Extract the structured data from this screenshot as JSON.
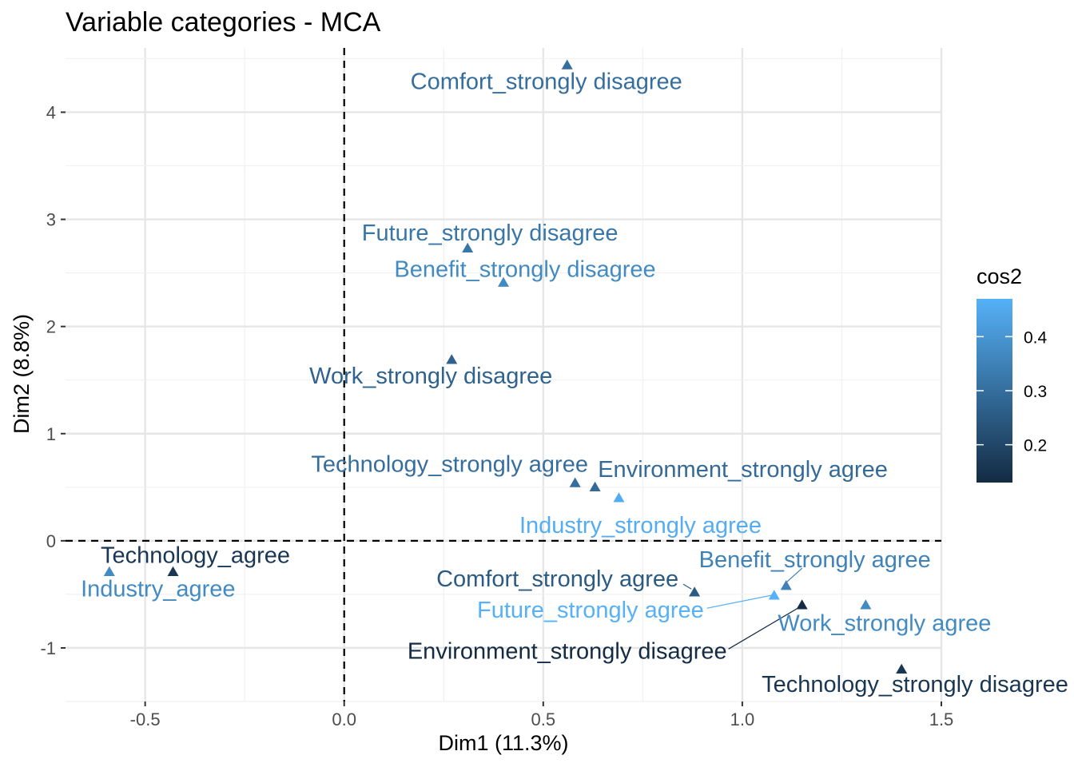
{
  "chart_data": {
    "type": "scatter",
    "title": "Variable categories - MCA",
    "xlabel": "Dim1 (11.3%)",
    "ylabel": "Dim2 (8.8%)",
    "xlim": [
      -0.7,
      1.5
    ],
    "ylim": [
      -1.5,
      4.6
    ],
    "xticks": [
      -0.5,
      0.0,
      0.5,
      1.0,
      1.5
    ],
    "xtick_labels": [
      "-0.5",
      "0.0",
      "0.5",
      "1.0",
      "1.5"
    ],
    "yticks": [
      -1,
      0,
      1,
      2,
      3,
      4
    ],
    "ytick_labels": [
      "-1",
      "0",
      "1",
      "2",
      "3",
      "4"
    ],
    "grid": true,
    "reference_lines": {
      "x": 0,
      "y": 0,
      "style": "dashed"
    },
    "legend": {
      "title": "cos2",
      "placement": "right",
      "range": [
        0.13,
        0.47
      ],
      "ticks": [
        0.2,
        0.3,
        0.4
      ],
      "tick_labels": [
        "0.2",
        "0.3",
        "0.4"
      ],
      "color_low": "#132b43",
      "color_high": "#56b1f7"
    },
    "points": [
      {
        "label": "Comfort_strongly disagree",
        "x": 0.56,
        "y": 4.44,
        "cos2": 0.3
      },
      {
        "label": "Future_strongly disagree",
        "x": 0.31,
        "y": 2.73,
        "cos2": 0.32
      },
      {
        "label": "Benefit_strongly disagree",
        "x": 0.4,
        "y": 2.41,
        "cos2": 0.37
      },
      {
        "label": "Work_strongly disagree",
        "x": 0.27,
        "y": 1.69,
        "cos2": 0.27
      },
      {
        "label": "Technology_strongly agree",
        "x": 0.58,
        "y": 0.54,
        "cos2": 0.3
      },
      {
        "label": "Environment_strongly agree",
        "x": 0.63,
        "y": 0.5,
        "cos2": 0.29
      },
      {
        "label": "Industry_strongly agree",
        "x": 0.69,
        "y": 0.4,
        "cos2": 0.46
      },
      {
        "label": "Technology_agree",
        "x": -0.43,
        "y": -0.29,
        "cos2": 0.16
      },
      {
        "label": "Industry_agree",
        "x": -0.59,
        "y": -0.29,
        "cos2": 0.37
      },
      {
        "label": "Comfort_strongly agree",
        "x": 0.88,
        "y": -0.48,
        "cos2": 0.25
      },
      {
        "label": "Benefit_strongly agree",
        "x": 1.11,
        "y": -0.42,
        "cos2": 0.35
      },
      {
        "label": "Future_strongly agree",
        "x": 1.08,
        "y": -0.51,
        "cos2": 0.47
      },
      {
        "label": "Environment_strongly disagree",
        "x": 1.15,
        "y": -0.6,
        "cos2": 0.13
      },
      {
        "label": "Work_strongly agree",
        "x": 1.31,
        "y": -0.6,
        "cos2": 0.37
      },
      {
        "label": "Technology_strongly disagree",
        "x": 1.4,
        "y": -1.2,
        "cos2": 0.16
      }
    ]
  }
}
